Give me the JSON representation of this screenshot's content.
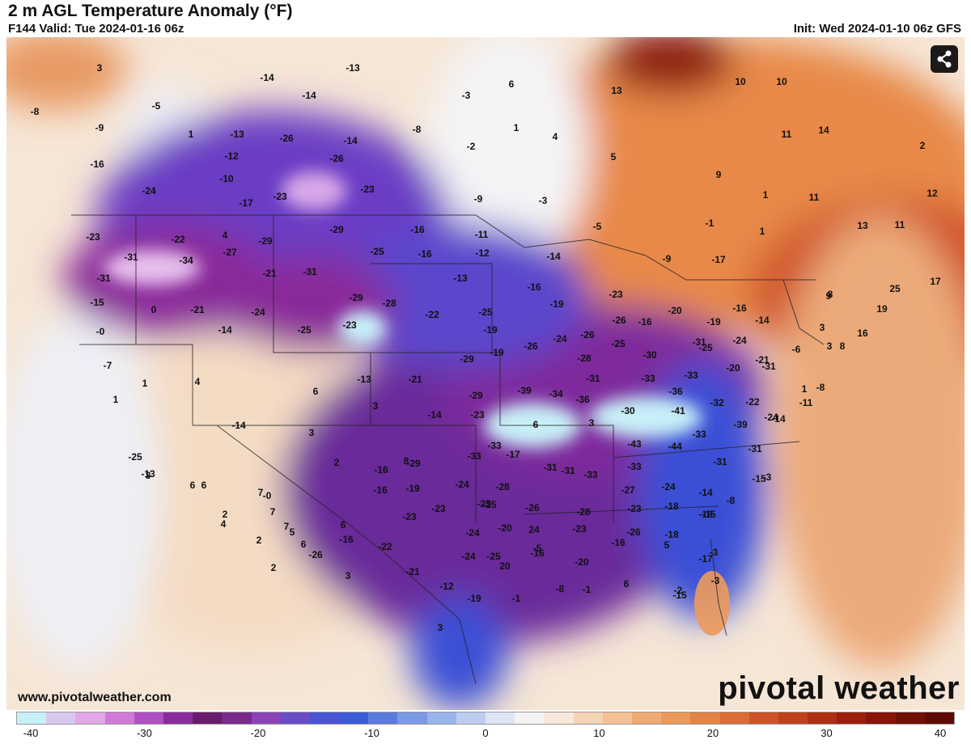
{
  "header": {
    "title": "2 m AGL Temperature Anomaly (°F)",
    "valid": "F144 Valid: Tue 2024-01-16 06z",
    "init": "Init: Wed 2024-01-10 06z GFS"
  },
  "footer": {
    "url": "www.pivotalweather.com",
    "brand": "pivotal weather"
  },
  "icons": {
    "share": "share-icon"
  },
  "colorbar": {
    "ticks": [
      "-40",
      "-30",
      "-20",
      "-10",
      "0",
      "10",
      "20",
      "30",
      "40"
    ],
    "colors": [
      "#c8f0f8",
      "#d9c8ee",
      "#e4a8e8",
      "#d07ad8",
      "#b050c4",
      "#8a2c9c",
      "#6a1c6c",
      "#7a2a8a",
      "#8a44b8",
      "#6a4cc8",
      "#4a54d4",
      "#3a5ad8",
      "#5a7ae0",
      "#7a9ae6",
      "#9ab4ec",
      "#bccdf0",
      "#dde4f4",
      "#f4f4f4",
      "#f8e8da",
      "#f6d4b6",
      "#f4c094",
      "#f0aa74",
      "#ec9858",
      "#e48444",
      "#da6c34",
      "#ce5428",
      "#c0401c",
      "#b02e14",
      "#9e1e0c",
      "#881408",
      "#721004",
      "#5e0a02"
    ]
  },
  "values": [
    {
      "t": "3"
    },
    {
      "t": "-5"
    },
    {
      "t": "-8"
    },
    {
      "t": "-9"
    },
    {
      "t": "1"
    },
    {
      "t": "-16"
    },
    {
      "t": "-24"
    },
    {
      "t": "-14"
    },
    {
      "t": "-13"
    },
    {
      "t": "-12"
    },
    {
      "t": "-10"
    },
    {
      "t": "-17"
    },
    {
      "t": "-26"
    },
    {
      "t": "-13"
    },
    {
      "t": "-14"
    },
    {
      "t": "-26"
    },
    {
      "t": "-23"
    },
    {
      "t": "-23"
    },
    {
      "t": "-14"
    },
    {
      "t": "-3"
    },
    {
      "t": "-8"
    },
    {
      "t": "-2"
    },
    {
      "t": "-9"
    },
    {
      "t": "-3"
    },
    {
      "t": "6"
    },
    {
      "t": "1"
    },
    {
      "t": "4"
    },
    {
      "t": "5"
    },
    {
      "t": "13"
    },
    {
      "t": "10"
    },
    {
      "t": "10"
    },
    {
      "t": "11"
    },
    {
      "t": "14"
    },
    {
      "t": "2"
    },
    {
      "t": "9"
    },
    {
      "t": "1"
    },
    {
      "t": "11"
    },
    {
      "t": "12"
    },
    {
      "t": "13"
    },
    {
      "t": "11"
    },
    {
      "t": "-1"
    },
    {
      "t": "1"
    },
    {
      "t": "-17"
    },
    {
      "t": "-9"
    },
    {
      "t": "-5"
    },
    {
      "t": "-23"
    },
    {
      "t": "-22"
    },
    {
      "t": "4"
    },
    {
      "t": "-29"
    },
    {
      "t": "-29"
    },
    {
      "t": "-31"
    },
    {
      "t": "-34"
    },
    {
      "t": "-27"
    },
    {
      "t": "-21"
    },
    {
      "t": "-31"
    },
    {
      "t": "-25"
    },
    {
      "t": "-16"
    },
    {
      "t": "-11"
    },
    {
      "t": "-16"
    },
    {
      "t": "-12"
    },
    {
      "t": "-13"
    },
    {
      "t": "-14"
    },
    {
      "t": "-16"
    },
    {
      "t": "-19"
    },
    {
      "t": "-23"
    },
    {
      "t": "-20"
    },
    {
      "t": "-16"
    },
    {
      "t": "-16"
    },
    {
      "t": "-19"
    },
    {
      "t": "-14"
    },
    {
      "t": "3"
    },
    {
      "t": "8"
    },
    {
      "t": "9"
    },
    {
      "t": "25"
    },
    {
      "t": "17"
    },
    {
      "t": "19"
    },
    {
      "t": "-31"
    },
    {
      "t": "-15"
    },
    {
      "t": "0"
    },
    {
      "t": "-21"
    },
    {
      "t": "-24"
    },
    {
      "t": "-14"
    },
    {
      "t": "-0"
    },
    {
      "t": "-25"
    },
    {
      "t": "-23"
    },
    {
      "t": "-29"
    },
    {
      "t": "-28"
    },
    {
      "t": "-22"
    },
    {
      "t": "-25"
    },
    {
      "t": "-19"
    },
    {
      "t": "-19"
    },
    {
      "t": "-26"
    },
    {
      "t": "-24"
    },
    {
      "t": "-26"
    },
    {
      "t": "-26"
    },
    {
      "t": "-25"
    },
    {
      "t": "-28"
    },
    {
      "t": "-30"
    },
    {
      "t": "-31"
    },
    {
      "t": "-25"
    },
    {
      "t": "-24"
    },
    {
      "t": "-21"
    },
    {
      "t": "-20"
    },
    {
      "t": "-31"
    },
    {
      "t": "-6"
    },
    {
      "t": "3"
    },
    {
      "t": "16"
    },
    {
      "t": "8"
    },
    {
      "t": "-7"
    },
    {
      "t": "1"
    },
    {
      "t": "4"
    },
    {
      "t": "1"
    },
    {
      "t": "-13"
    },
    {
      "t": "-21"
    },
    {
      "t": "-29"
    },
    {
      "t": "6"
    },
    {
      "t": "-31"
    },
    {
      "t": "-33"
    },
    {
      "t": "-33"
    },
    {
      "t": "-36"
    },
    {
      "t": "-32"
    },
    {
      "t": "-22"
    },
    {
      "t": "-14"
    },
    {
      "t": "-11"
    },
    {
      "t": "-8"
    },
    {
      "t": "1"
    },
    {
      "t": "3"
    },
    {
      "t": "-14"
    },
    {
      "t": "-23"
    },
    {
      "t": "-29"
    },
    {
      "t": "-39"
    },
    {
      "t": "-34"
    },
    {
      "t": "-36"
    },
    {
      "t": "-30"
    },
    {
      "t": "-41"
    },
    {
      "t": "-39"
    },
    {
      "t": "-24"
    },
    {
      "t": "-14"
    },
    {
      "t": "3"
    },
    {
      "t": "6"
    },
    {
      "t": "3"
    },
    {
      "t": "-43"
    },
    {
      "t": "-44"
    },
    {
      "t": "-33"
    },
    {
      "t": "-31"
    },
    {
      "t": "-33"
    },
    {
      "t": "-33"
    },
    {
      "t": "-29"
    },
    {
      "t": "-25"
    },
    {
      "t": "-13"
    },
    {
      "t": "-0"
    },
    {
      "t": "2"
    },
    {
      "t": "8"
    },
    {
      "t": "-16"
    },
    {
      "t": "-17"
    },
    {
      "t": "-31"
    },
    {
      "t": "-33"
    },
    {
      "t": "-33"
    },
    {
      "t": "-31"
    },
    {
      "t": "-15"
    },
    {
      "t": "3"
    },
    {
      "t": "7"
    },
    {
      "t": "6"
    },
    {
      "t": "2"
    },
    {
      "t": "7"
    },
    {
      "t": "-16"
    },
    {
      "t": "-19"
    },
    {
      "t": "-24"
    },
    {
      "t": "-28"
    },
    {
      "t": "-25"
    },
    {
      "t": "-31"
    },
    {
      "t": "-27"
    },
    {
      "t": "-24"
    },
    {
      "t": "-14"
    },
    {
      "t": "-8"
    },
    {
      "t": "-3"
    },
    {
      "t": "6"
    },
    {
      "t": "4"
    },
    {
      "t": "7"
    },
    {
      "t": "6"
    },
    {
      "t": "-23"
    },
    {
      "t": "-23"
    },
    {
      "t": "-25"
    },
    {
      "t": "-26"
    },
    {
      "t": "-28"
    },
    {
      "t": "-23"
    },
    {
      "t": "-18"
    },
    {
      "t": "-15"
    },
    {
      "t": "2"
    },
    {
      "t": "5"
    },
    {
      "t": "-16"
    },
    {
      "t": "-26"
    },
    {
      "t": "-24"
    },
    {
      "t": "-20"
    },
    {
      "t": "24"
    },
    {
      "t": "-23"
    },
    {
      "t": "-26"
    },
    {
      "t": "-18"
    },
    {
      "t": "-18"
    },
    {
      "t": "2"
    },
    {
      "t": "6"
    },
    {
      "t": "-22"
    },
    {
      "t": "-24"
    },
    {
      "t": "-25"
    },
    {
      "t": "-16"
    },
    {
      "t": "-20"
    },
    {
      "t": "-16"
    },
    {
      "t": "5"
    },
    {
      "t": "-3"
    },
    {
      "t": "3"
    },
    {
      "t": "-21"
    },
    {
      "t": "-12"
    },
    {
      "t": "-19"
    },
    {
      "t": "20"
    },
    {
      "t": "-5"
    },
    {
      "t": "-1"
    },
    {
      "t": "-2"
    },
    {
      "t": "-17"
    },
    {
      "t": "3"
    },
    {
      "t": "-1"
    },
    {
      "t": "-8"
    },
    {
      "t": "6"
    },
    {
      "t": "-15"
    },
    {
      "t": "-3"
    }
  ]
}
